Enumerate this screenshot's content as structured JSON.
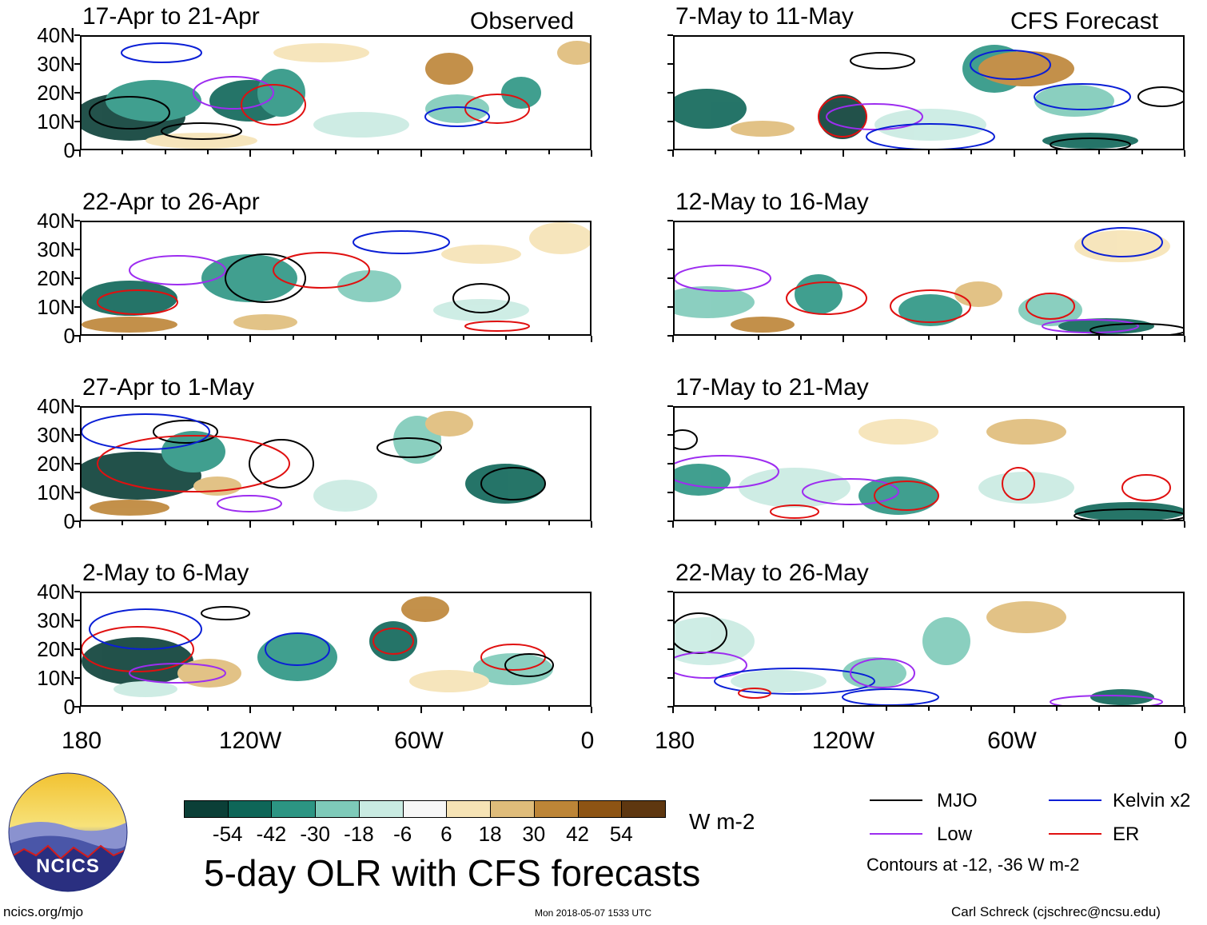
{
  "headers": {
    "observed": "Observed",
    "forecast": "CFS Forecast"
  },
  "panels": [
    {
      "title": "17-Apr to 21-Apr",
      "kind": "observed"
    },
    {
      "title": "22-Apr to 26-Apr",
      "kind": "observed"
    },
    {
      "title": "27-Apr to 1-May",
      "kind": "observed"
    },
    {
      "title": "2-May to 6-May",
      "kind": "observed"
    },
    {
      "title": "7-May to 11-May",
      "kind": "forecast"
    },
    {
      "title": "12-May to 16-May",
      "kind": "forecast"
    },
    {
      "title": "17-May to 21-May",
      "kind": "forecast"
    },
    {
      "title": "22-May to 26-May",
      "kind": "forecast"
    }
  ],
  "axes": {
    "lat_labels": [
      "40N",
      "30N",
      "20N",
      "10N",
      "0"
    ],
    "lon_labels": [
      "180",
      "120W",
      "60W",
      "0"
    ]
  },
  "colorbar": {
    "ticks": [
      "-54",
      "-42",
      "-30",
      "-18",
      "-6",
      "6",
      "18",
      "30",
      "42",
      "54"
    ],
    "colors": [
      "#0b3f37",
      "#0e6658",
      "#2c9583",
      "#7ecab9",
      "#c9ebe2",
      "#f7f7f7",
      "#f6e3b5",
      "#dfbc7a",
      "#bd8537",
      "#8d5414",
      "#5e3710"
    ],
    "unit": "W m-2"
  },
  "legend": {
    "mjo": {
      "label": "MJO",
      "color": "#000000"
    },
    "kelvin": {
      "label": "Kelvin x2",
      "color": "#0a1fd6"
    },
    "low": {
      "label": "Low",
      "color": "#9d2df0"
    },
    "er": {
      "label": "ER",
      "color": "#e01010"
    },
    "note": "Contours at -12, -36 W m-2"
  },
  "logo": {
    "text": "NCICS"
  },
  "footer": {
    "title": "5-day OLR with CFS forecasts",
    "url": "ncics.org/mjo",
    "timestamp": "Mon 2018-05-07 1533 UTC",
    "credit": "Carl Schreck (cjschrec@ncsu.edu)"
  }
}
